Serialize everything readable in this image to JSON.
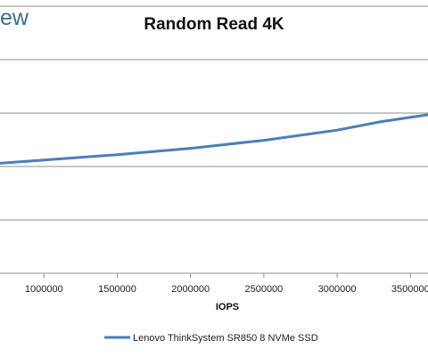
{
  "watermark": "ew",
  "chart_data": {
    "type": "line",
    "title": "Random Read 4K",
    "xlabel": "IOPS",
    "ylabel": "",
    "xlim": [
      700000,
      3620000
    ],
    "ylim": [
      0,
      500
    ],
    "x_ticks": [
      1000000,
      1500000,
      2000000,
      2500000,
      3000000,
      3500000
    ],
    "x_tick_labels": [
      "1000000",
      "1500000",
      "2000000",
      "2500000",
      "3000000",
      "3500000"
    ],
    "y_gridlines": [
      100,
      200,
      300,
      400,
      500
    ],
    "grid": true,
    "legend_position": "bottom",
    "series": [
      {
        "name": "Lenovo ThinkSystem SR850 8 NVMe SSD",
        "color": "#4a7ebb",
        "x": [
          700000,
          1000000,
          1500000,
          2000000,
          2500000,
          3000000,
          3300000,
          3620000
        ],
        "y": [
          206,
          212,
          222,
          234,
          249,
          268,
          284,
          297
        ]
      }
    ]
  }
}
